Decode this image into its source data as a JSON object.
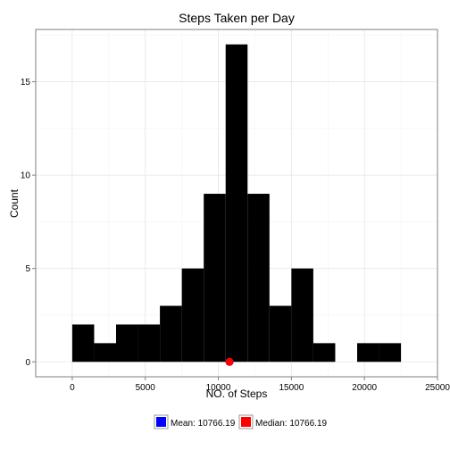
{
  "chart_data": {
    "type": "bar",
    "title": "Steps Taken per Day",
    "xlabel": "NO. of Steps",
    "ylabel": "Count",
    "xlim": [
      -2500,
      25000
    ],
    "ylim": [
      -0.8,
      17.8
    ],
    "bin_width": 1500,
    "bins": [
      {
        "x": 0,
        "count": 2
      },
      {
        "x": 1500,
        "count": 1
      },
      {
        "x": 3000,
        "count": 2
      },
      {
        "x": 4500,
        "count": 2
      },
      {
        "x": 6000,
        "count": 3
      },
      {
        "x": 7500,
        "count": 5
      },
      {
        "x": 9000,
        "count": 9
      },
      {
        "x": 10500,
        "count": 17
      },
      {
        "x": 12000,
        "count": 9
      },
      {
        "x": 13500,
        "count": 3
      },
      {
        "x": 15000,
        "count": 5
      },
      {
        "x": 16500,
        "count": 1
      },
      {
        "x": 18000,
        "count": 0
      },
      {
        "x": 19500,
        "count": 1
      },
      {
        "x": 21000,
        "count": 1
      }
    ],
    "x_ticks": [
      0,
      5000,
      10000,
      15000,
      20000,
      25000
    ],
    "x_tick_labels": [
      "0",
      "5000",
      "10000",
      "15000",
      "20000",
      "25000"
    ],
    "y_ticks": [
      0,
      5,
      10,
      15
    ],
    "y_tick_labels": [
      "0",
      "5",
      "10",
      "15"
    ],
    "bar_color": "#000000",
    "points": [
      {
        "name": "Mean",
        "x": 10766.19,
        "y": 0,
        "color": "#0000ff"
      },
      {
        "name": "Median",
        "x": 10766.19,
        "y": 0,
        "color": "#ff0000"
      }
    ],
    "legend": {
      "position": "bottom",
      "entries": [
        {
          "label": "Mean: 10766.19",
          "color": "#0000ff"
        },
        {
          "label": "Median: 10766.19",
          "color": "#ff0000"
        }
      ]
    },
    "grid": true
  }
}
